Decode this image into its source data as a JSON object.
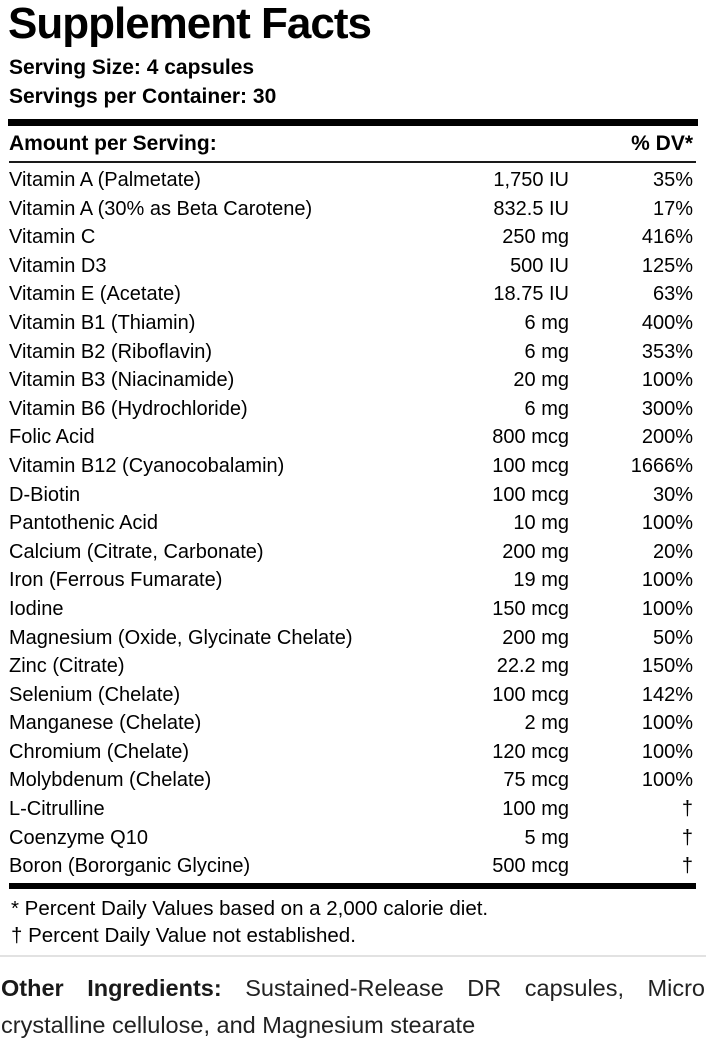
{
  "label": {
    "title": "Supplement Facts",
    "serving_size": "Serving Size: 4 capsules",
    "servings_per_container": "Servings per Container: 30",
    "columns": {
      "amount_header": "Amount per Serving:",
      "dv_header": "% DV*"
    },
    "rows": [
      {
        "name": "Vitamin A (Palmetate)",
        "amount": "1,750 IU",
        "dv": "35%"
      },
      {
        "name": "Vitamin A (30% as Beta Carotene)",
        "amount": "832.5 IU",
        "dv": "17%"
      },
      {
        "name": "Vitamin C",
        "amount": "250 mg",
        "dv": "416%"
      },
      {
        "name": "Vitamin D3",
        "amount": "500 IU",
        "dv": "125%"
      },
      {
        "name": "Vitamin E (Acetate)",
        "amount": "18.75 IU",
        "dv": "63%"
      },
      {
        "name": "Vitamin B1 (Thiamin)",
        "amount": "6 mg",
        "dv": "400%"
      },
      {
        "name": "Vitamin B2 (Riboflavin)",
        "amount": "6 mg",
        "dv": "353%"
      },
      {
        "name": "Vitamin B3 (Niacinamide)",
        "amount": "20 mg",
        "dv": "100%"
      },
      {
        "name": "Vitamin B6 (Hydrochloride)",
        "amount": "6 mg",
        "dv": "300%"
      },
      {
        "name": "Folic Acid",
        "amount": "800 mcg",
        "dv": "200%"
      },
      {
        "name": "Vitamin B12 (Cyanocobalamin)",
        "amount": "100 mcg",
        "dv": "1666%"
      },
      {
        "name": "D-Biotin",
        "amount": "100 mcg",
        "dv": "30%"
      },
      {
        "name": "Pantothenic Acid",
        "amount": "10 mg",
        "dv": "100%"
      },
      {
        "name": "Calcium (Citrate, Carbonate)",
        "amount": "200 mg",
        "dv": "20%"
      },
      {
        "name": "Iron (Ferrous Fumarate)",
        "amount": "19 mg",
        "dv": "100%"
      },
      {
        "name": "Iodine",
        "amount": "150 mcg",
        "dv": "100%"
      },
      {
        "name": "Magnesium (Oxide, Glycinate Chelate)",
        "amount": "200 mg",
        "dv": "50%"
      },
      {
        "name": "Zinc (Citrate)",
        "amount": "22.2 mg",
        "dv": "150%"
      },
      {
        "name": "Selenium (Chelate)",
        "amount": "100 mcg",
        "dv": "142%"
      },
      {
        "name": "Manganese (Chelate)",
        "amount": "2 mg",
        "dv": "100%"
      },
      {
        "name": "Chromium (Chelate)",
        "amount": "120 mcg",
        "dv": "100%"
      },
      {
        "name": "Molybdenum (Chelate)",
        "amount": "75 mcg",
        "dv": "100%"
      },
      {
        "name": "L-Citrulline",
        "amount": "100 mg",
        "dv": "†"
      },
      {
        "name": "Coenzyme Q10",
        "amount": "5 mg",
        "dv": "†"
      },
      {
        "name": "Boron (Bororganic Glycine)",
        "amount": "500 mcg",
        "dv": "†"
      }
    ],
    "footnotes": [
      "* Percent Daily Values based on a 2,000 calorie diet.",
      "† Percent Daily Value not established."
    ],
    "other_ingredients": {
      "label": "Other Ingredients:",
      "text": " Sustained-Release DR capsules, Micro crystalline cellulose, and Magnesium stearate"
    }
  }
}
